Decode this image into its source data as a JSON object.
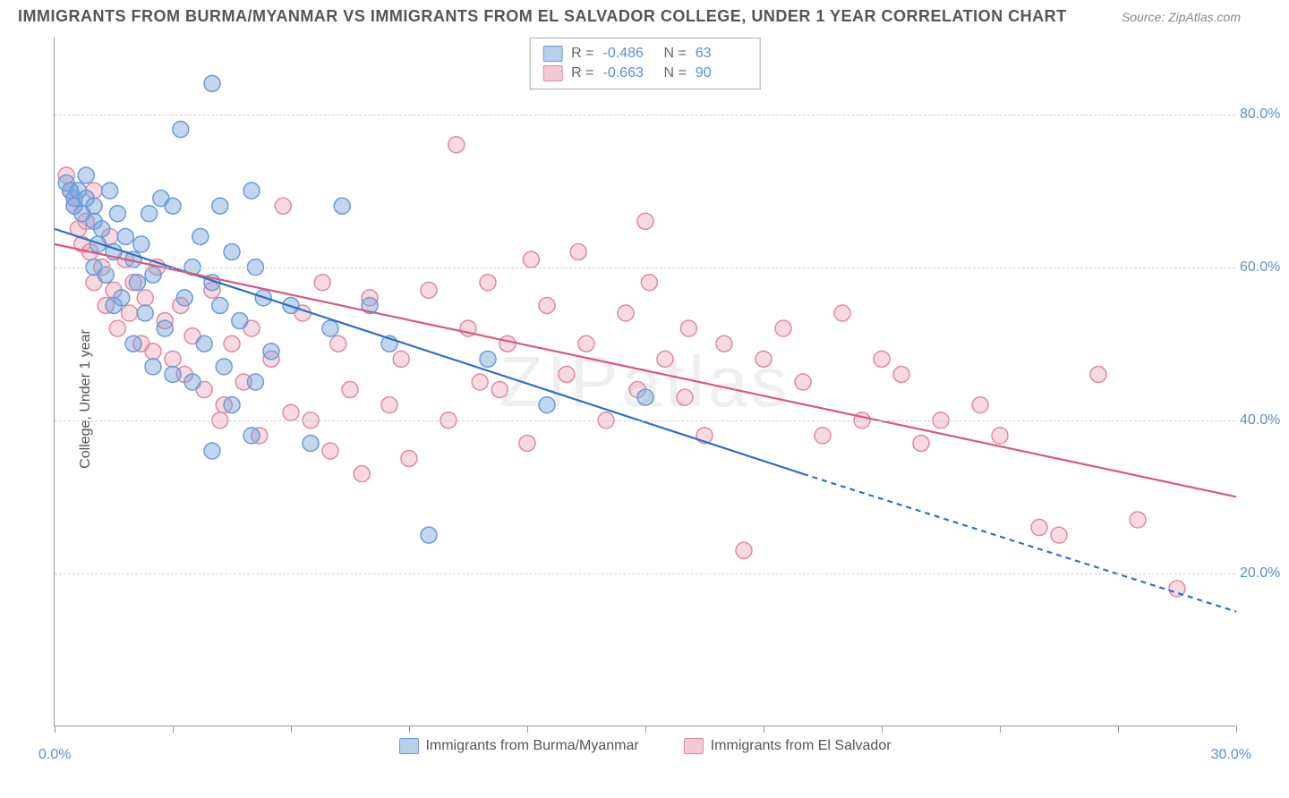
{
  "title": "IMMIGRANTS FROM BURMA/MYANMAR VS IMMIGRANTS FROM EL SALVADOR COLLEGE, UNDER 1 YEAR CORRELATION CHART",
  "source": "Source: ZipAtlas.com",
  "ylabel": "College, Under 1 year",
  "watermark": "ZIPatlas",
  "xlim": [
    0,
    30
  ],
  "ylim": [
    0,
    90
  ],
  "x_tick_positions": [
    0,
    3,
    6,
    9,
    12,
    15,
    18,
    21,
    24,
    27,
    30
  ],
  "y_gridlines": [
    20,
    40,
    60,
    80
  ],
  "y_tick_labels": [
    "20.0%",
    "40.0%",
    "60.0%",
    "80.0%"
  ],
  "x_label_min": "0.0%",
  "x_label_max": "30.0%",
  "colors": {
    "series_a_fill": "rgba(120,165,220,0.45)",
    "series_a_stroke": "#6a9bd8",
    "series_a_swatch_fill": "#b8d0ec",
    "series_a_swatch_stroke": "#6a9bd8",
    "series_b_fill": "rgba(235,160,180,0.40)",
    "series_b_stroke": "#e08aa0",
    "series_b_swatch_fill": "#f3c9d5",
    "series_b_swatch_stroke": "#e08aa0",
    "line_a": "#2e6fc7",
    "line_b": "#d85a7a",
    "axis_text": "#5b8fd6",
    "grid": "#cccccc"
  },
  "marker_radius": 9,
  "marker_stroke_width": 1.5,
  "line_width": 2.2,
  "series": [
    {
      "key": "a",
      "label": "Immigrants from Burma/Myanmar",
      "R": "-0.486",
      "N": "63",
      "trend": {
        "x1": 0,
        "y1": 65,
        "x2": 19,
        "y2": 33,
        "x2_dash": 30,
        "y2_dash": 15
      },
      "points": [
        [
          0.3,
          71
        ],
        [
          0.4,
          70
        ],
        [
          0.5,
          69
        ],
        [
          0.5,
          68
        ],
        [
          0.6,
          70
        ],
        [
          0.7,
          67
        ],
        [
          0.8,
          69
        ],
        [
          0.8,
          72
        ],
        [
          1.0,
          68
        ],
        [
          1.0,
          66
        ],
        [
          1.0,
          60
        ],
        [
          1.1,
          63
        ],
        [
          1.2,
          65
        ],
        [
          1.3,
          59
        ],
        [
          1.4,
          70
        ],
        [
          1.5,
          62
        ],
        [
          1.5,
          55
        ],
        [
          1.6,
          67
        ],
        [
          1.7,
          56
        ],
        [
          1.8,
          64
        ],
        [
          2.0,
          61
        ],
        [
          2.0,
          50
        ],
        [
          2.1,
          58
        ],
        [
          2.2,
          63
        ],
        [
          2.3,
          54
        ],
        [
          2.4,
          67
        ],
        [
          2.5,
          47
        ],
        [
          2.5,
          59
        ],
        [
          2.7,
          69
        ],
        [
          2.8,
          52
        ],
        [
          3.0,
          68
        ],
        [
          3.0,
          46
        ],
        [
          3.2,
          78
        ],
        [
          3.3,
          56
        ],
        [
          3.5,
          60
        ],
        [
          3.5,
          45
        ],
        [
          3.7,
          64
        ],
        [
          3.8,
          50
        ],
        [
          4.0,
          84
        ],
        [
          4.0,
          58
        ],
        [
          4.0,
          36
        ],
        [
          4.2,
          55
        ],
        [
          4.2,
          68
        ],
        [
          4.3,
          47
        ],
        [
          4.5,
          62
        ],
        [
          4.5,
          42
        ],
        [
          4.7,
          53
        ],
        [
          5.0,
          70
        ],
        [
          5.0,
          38
        ],
        [
          5.1,
          45
        ],
        [
          5.1,
          60
        ],
        [
          5.3,
          56
        ],
        [
          5.5,
          49
        ],
        [
          6.0,
          55
        ],
        [
          6.5,
          37
        ],
        [
          7.0,
          52
        ],
        [
          7.3,
          68
        ],
        [
          8.0,
          55
        ],
        [
          8.5,
          50
        ],
        [
          9.5,
          25
        ],
        [
          11.0,
          48
        ],
        [
          12.5,
          42
        ],
        [
          15.0,
          43
        ]
      ]
    },
    {
      "key": "b",
      "label": "Immigrants from El Salvador",
      "R": "-0.663",
      "N": "90",
      "trend": {
        "x1": 0,
        "y1": 63,
        "x2": 30,
        "y2": 30
      },
      "points": [
        [
          0.3,
          72
        ],
        [
          0.4,
          70
        ],
        [
          0.5,
          68
        ],
        [
          0.6,
          65
        ],
        [
          0.7,
          63
        ],
        [
          0.8,
          66
        ],
        [
          0.9,
          62
        ],
        [
          1.0,
          70
        ],
        [
          1.0,
          58
        ],
        [
          1.2,
          60
        ],
        [
          1.3,
          55
        ],
        [
          1.4,
          64
        ],
        [
          1.5,
          57
        ],
        [
          1.6,
          52
        ],
        [
          1.8,
          61
        ],
        [
          1.9,
          54
        ],
        [
          2.0,
          58
        ],
        [
          2.2,
          50
        ],
        [
          2.3,
          56
        ],
        [
          2.5,
          49
        ],
        [
          2.6,
          60
        ],
        [
          2.8,
          53
        ],
        [
          3.0,
          48
        ],
        [
          3.2,
          55
        ],
        [
          3.3,
          46
        ],
        [
          3.5,
          51
        ],
        [
          3.8,
          44
        ],
        [
          4.0,
          57
        ],
        [
          4.2,
          40
        ],
        [
          4.3,
          42
        ],
        [
          4.5,
          50
        ],
        [
          4.8,
          45
        ],
        [
          5.0,
          52
        ],
        [
          5.2,
          38
        ],
        [
          5.5,
          48
        ],
        [
          5.8,
          68
        ],
        [
          6.0,
          41
        ],
        [
          6.3,
          54
        ],
        [
          6.5,
          40
        ],
        [
          6.8,
          58
        ],
        [
          7.0,
          36
        ],
        [
          7.2,
          50
        ],
        [
          7.5,
          44
        ],
        [
          7.8,
          33
        ],
        [
          8.0,
          56
        ],
        [
          8.5,
          42
        ],
        [
          8.8,
          48
        ],
        [
          9.0,
          35
        ],
        [
          9.5,
          57
        ],
        [
          10.0,
          40
        ],
        [
          10.2,
          76
        ],
        [
          10.5,
          52
        ],
        [
          10.8,
          45
        ],
        [
          11.0,
          58
        ],
        [
          11.3,
          44
        ],
        [
          11.5,
          50
        ],
        [
          12.0,
          37
        ],
        [
          12.1,
          61
        ],
        [
          12.5,
          55
        ],
        [
          13.0,
          46
        ],
        [
          13.3,
          62
        ],
        [
          13.5,
          50
        ],
        [
          14.0,
          40
        ],
        [
          14.5,
          54
        ],
        [
          14.8,
          44
        ],
        [
          15.0,
          66
        ],
        [
          15.1,
          58
        ],
        [
          15.5,
          48
        ],
        [
          16.0,
          43
        ],
        [
          16.1,
          52
        ],
        [
          16.5,
          38
        ],
        [
          17.0,
          50
        ],
        [
          17.5,
          23
        ],
        [
          18.0,
          48
        ],
        [
          18.5,
          52
        ],
        [
          19.0,
          45
        ],
        [
          19.5,
          38
        ],
        [
          20.0,
          54
        ],
        [
          20.5,
          40
        ],
        [
          21.0,
          48
        ],
        [
          21.5,
          46
        ],
        [
          22.0,
          37
        ],
        [
          22.5,
          40
        ],
        [
          23.5,
          42
        ],
        [
          24.0,
          38
        ],
        [
          25.0,
          26
        ],
        [
          25.5,
          25
        ],
        [
          26.5,
          46
        ],
        [
          27.5,
          27
        ],
        [
          28.5,
          18
        ]
      ]
    }
  ]
}
